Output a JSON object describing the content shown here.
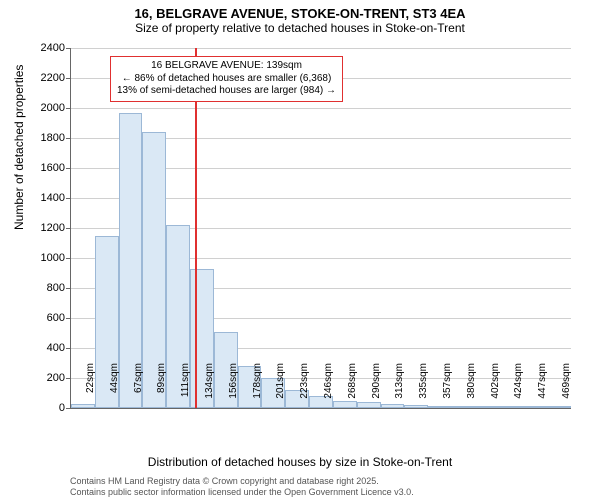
{
  "title": {
    "main": "16, BELGRAVE AVENUE, STOKE-ON-TRENT, ST3 4EA",
    "sub": "Size of property relative to detached houses in Stoke-on-Trent"
  },
  "chart": {
    "type": "histogram",
    "y_axis_title": "Number of detached properties",
    "x_axis_title": "Distribution of detached houses by size in Stoke-on-Trent",
    "background_color": "#ffffff",
    "grid_color": "#d0d0d0",
    "axis_color": "#666666",
    "bar_fill": "#dae8f5",
    "bar_border": "#9cb8d6",
    "marker_color": "#e03030",
    "ylim": [
      0,
      2400
    ],
    "ytick_step": 200,
    "ytick_labels": [
      "0",
      "200",
      "400",
      "600",
      "800",
      "1000",
      "1200",
      "1400",
      "1600",
      "1800",
      "2000",
      "2200",
      "2400"
    ],
    "x_categories": [
      "22sqm",
      "44sqm",
      "67sqm",
      "89sqm",
      "111sqm",
      "134sqm",
      "156sqm",
      "178sqm",
      "201sqm",
      "223sqm",
      "246sqm",
      "268sqm",
      "290sqm",
      "313sqm",
      "335sqm",
      "357sqm",
      "380sqm",
      "402sqm",
      "424sqm",
      "447sqm",
      "469sqm"
    ],
    "values": [
      30,
      1150,
      1965,
      1840,
      1220,
      930,
      510,
      280,
      200,
      120,
      80,
      50,
      40,
      30,
      20,
      15,
      0,
      10,
      0,
      5,
      3
    ],
    "marker_x_index": 5,
    "marker_sqm": "139sqm"
  },
  "annotation": {
    "line1": "16 BELGRAVE AVENUE: 139sqm",
    "line2": "← 86% of detached houses are smaller (6,368)",
    "line3": "13% of semi-detached houses are larger (984) →"
  },
  "footer": {
    "line1": "Contains HM Land Registry data © Crown copyright and database right 2025.",
    "line2": "Contains public sector information licensed under the Open Government Licence v3.0."
  },
  "style": {
    "title_fontsize": 13,
    "subtitle_fontsize": 12,
    "axis_title_fontsize": 12,
    "tick_fontsize": 11,
    "annotation_fontsize": 10,
    "footer_fontsize": 9
  }
}
